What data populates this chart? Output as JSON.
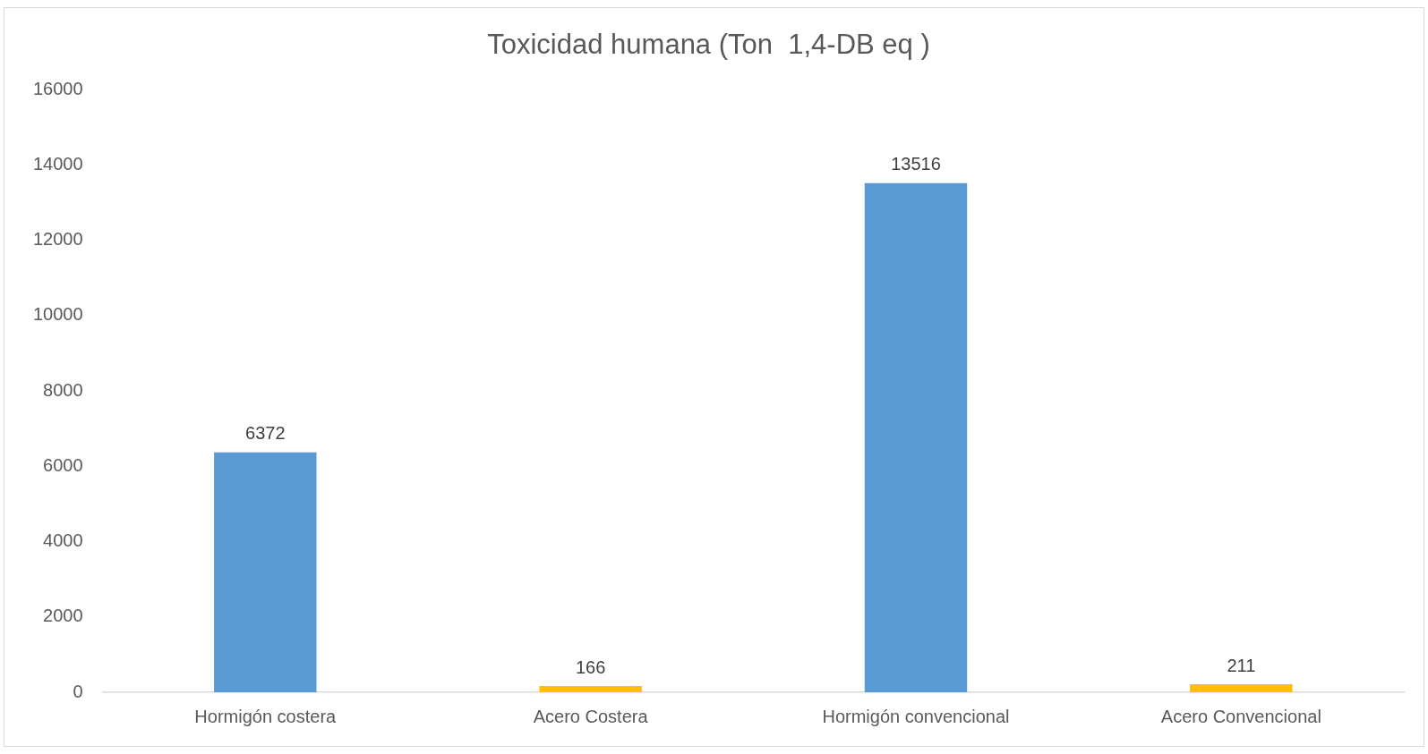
{
  "chart_data": {
    "type": "bar",
    "title": "Toxicidad humana (Ton  1,4-DB eq )",
    "categories": [
      "Hormigón costera",
      "Acero Costera",
      "Hormigón convencional",
      "Acero Convencional"
    ],
    "values": [
      6372,
      166,
      13516,
      211
    ],
    "colors": [
      "#5b9bd5",
      "#ffc000",
      "#5b9bd5",
      "#ffc000"
    ],
    "ylim": [
      0,
      16000
    ],
    "yticks": [
      0,
      2000,
      4000,
      6000,
      8000,
      10000,
      12000,
      14000,
      16000
    ],
    "grid": false,
    "legend": false,
    "data_labels": true
  }
}
